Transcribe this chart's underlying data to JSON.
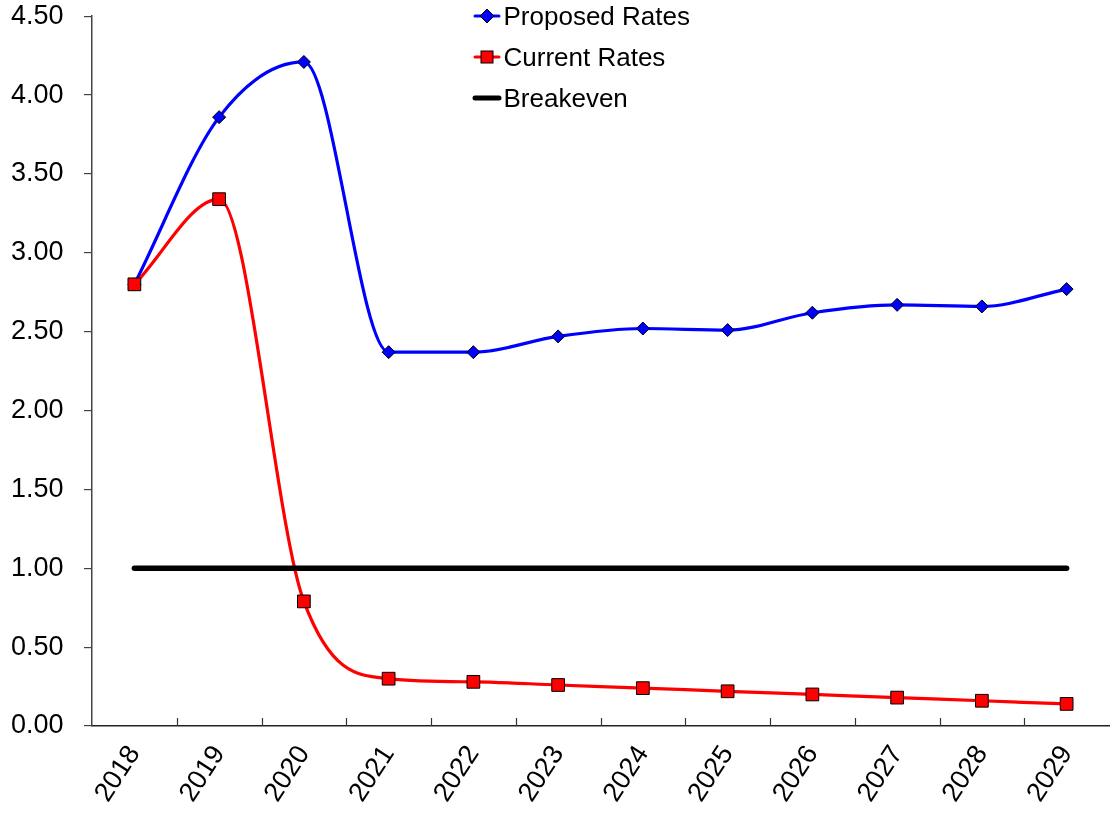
{
  "chart_data": {
    "type": "line",
    "categories": [
      "2018",
      "2019",
      "2020",
      "2021",
      "2022",
      "2023",
      "2024",
      "2025",
      "2026",
      "2027",
      "2028",
      "2029"
    ],
    "series": [
      {
        "name": "Proposed Rates",
        "color": "#0000ff",
        "marker": "diamond",
        "values": [
          2.8,
          3.86,
          4.21,
          2.37,
          2.37,
          2.47,
          2.52,
          2.51,
          2.62,
          2.67,
          2.66,
          2.77
        ]
      },
      {
        "name": "Current Rates",
        "color": "#ff0000",
        "marker": "square",
        "values": [
          2.8,
          3.34,
          0.79,
          0.3,
          0.28,
          0.26,
          0.24,
          0.22,
          0.2,
          0.18,
          0.16,
          0.14
        ]
      },
      {
        "name": "Breakeven",
        "color": "#000000",
        "marker": "none",
        "values": [
          1.0,
          1.0,
          1.0,
          1.0,
          1.0,
          1.0,
          1.0,
          1.0,
          1.0,
          1.0,
          1.0,
          1.0
        ]
      }
    ],
    "ylim": [
      0,
      4.5
    ],
    "yticks": [
      {
        "value": 0,
        "label": "0.00"
      },
      {
        "value": 0.5,
        "label": "0.50"
      },
      {
        "value": 1,
        "label": "1.00"
      },
      {
        "value": 1.5,
        "label": "1.50"
      },
      {
        "value": 2,
        "label": "2.00"
      },
      {
        "value": 2.5,
        "label": "2.50"
      },
      {
        "value": 3,
        "label": "3.00"
      },
      {
        "value": 3.5,
        "label": "3.50"
      },
      {
        "value": 4,
        "label": "4.00"
      },
      {
        "value": 4.5,
        "label": "4.50"
      }
    ],
    "grid": false,
    "legend": "top"
  }
}
